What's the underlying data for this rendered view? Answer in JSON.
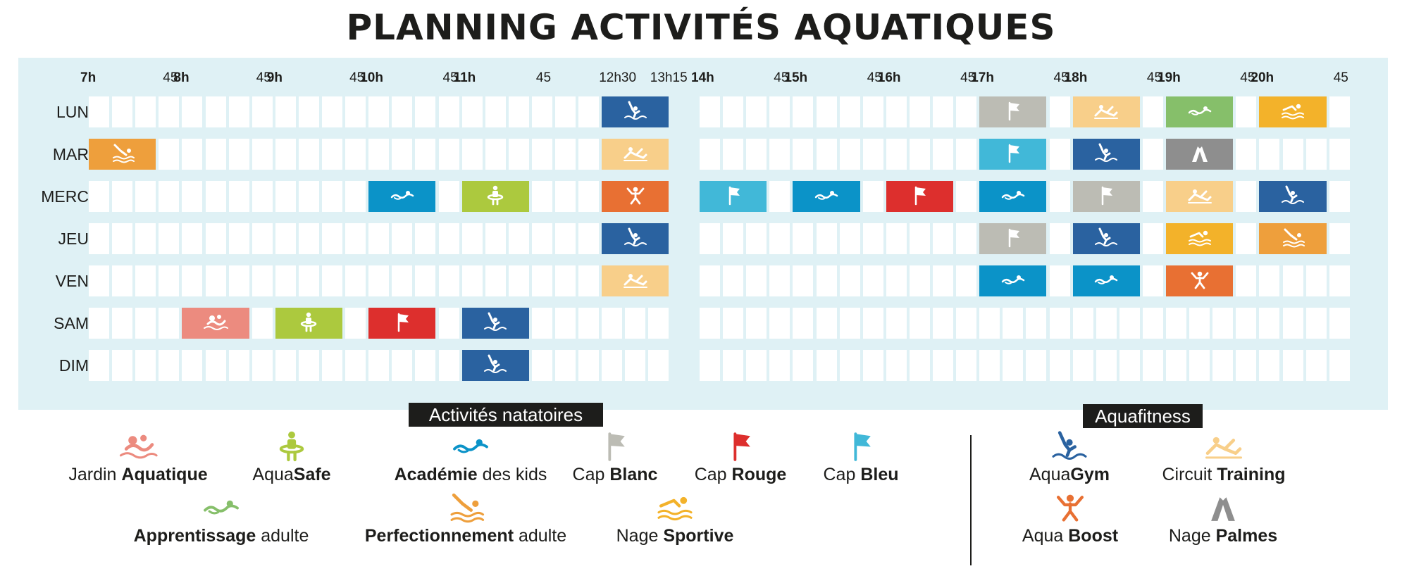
{
  "title": "PLANNING ACTIVITÉS AQUATIQUES",
  "time_axis": {
    "hours": [
      {
        "label": "7h",
        "slot": 0
      },
      {
        "label": "8h",
        "slot": 4
      },
      {
        "label": "9h",
        "slot": 8
      },
      {
        "label": "10h",
        "slot": 12
      },
      {
        "label": "11h",
        "slot": 16
      },
      {
        "label": "14h",
        "slot": 27
      },
      {
        "label": "15h",
        "slot": 31
      },
      {
        "label": "16h",
        "slot": 35
      },
      {
        "label": "17h",
        "slot": 39
      },
      {
        "label": "18h",
        "slot": 43
      },
      {
        "label": "19h",
        "slot": 47
      },
      {
        "label": "20h",
        "slot": 51
      }
    ],
    "minutes": [
      {
        "label": "45",
        "slot": 3
      },
      {
        "label": "45",
        "slot": 7
      },
      {
        "label": "45",
        "slot": 11
      },
      {
        "label": "45",
        "slot": 15
      },
      {
        "label": "45",
        "slot": 19
      },
      {
        "label": "12h30",
        "slot": 22
      },
      {
        "label": "13h15",
        "slot": 25
      },
      {
        "label": "45",
        "slot": 30
      },
      {
        "label": "45",
        "slot": 34
      },
      {
        "label": "45",
        "slot": 38
      },
      {
        "label": "45",
        "slot": 42
      },
      {
        "label": "45",
        "slot": 46
      },
      {
        "label": "45",
        "slot": 50
      },
      {
        "label": "45",
        "slot": 54
      }
    ]
  },
  "days": [
    "LUN",
    "MAR",
    "MERC",
    "JEU",
    "VEN",
    "SAM",
    "DIM"
  ],
  "activities": {
    "jardin": {
      "label_pre": "Jardin ",
      "label_bold": "Aquatique",
      "label_post": "",
      "color": "#ec8b7f",
      "icon": "baby-swim-icon"
    },
    "aquasafe": {
      "label_pre": "Aqua",
      "label_bold": "Safe",
      "label_post": "",
      "color": "#acc93e",
      "icon": "child-float-icon"
    },
    "academie": {
      "label_pre": "",
      "label_bold": "Académie",
      "label_post": " des kids",
      "color": "#0b93c8",
      "icon": "swimmer-icon"
    },
    "cap_blanc": {
      "label_pre": "Cap ",
      "label_bold": "Blanc",
      "label_post": "",
      "color": "#bcbcb4",
      "icon": "flag-icon"
    },
    "cap_rouge": {
      "label_pre": "Cap ",
      "label_bold": "Rouge",
      "label_post": "",
      "color": "#dd2f2d",
      "icon": "flag-icon"
    },
    "cap_bleu": {
      "label_pre": "Cap ",
      "label_bold": "Bleu",
      "label_post": "",
      "color": "#41b8d8",
      "icon": "flag-icon"
    },
    "apprentissage": {
      "label_pre": "",
      "label_bold": "Apprentissage",
      "label_post": " adulte",
      "color": "#86bf6a",
      "icon": "swimmer-icon"
    },
    "perfection": {
      "label_pre": "",
      "label_bold": "Perfectionnement",
      "label_post": " adulte",
      "color": "#ee9f3c",
      "icon": "diver-icon"
    },
    "nage_sportive": {
      "label_pre": "Nage ",
      "label_bold": "Sportive",
      "label_post": "",
      "color": "#f3b22a",
      "icon": "crawl-icon"
    },
    "aquagym": {
      "label_pre": "Aqua",
      "label_bold": "Gym",
      "label_post": "",
      "color": "#2a62a0",
      "icon": "aquagym-icon"
    },
    "circuit": {
      "label_pre": "Circuit ",
      "label_bold": "Training",
      "label_post": "",
      "color": "#f8cf8a",
      "icon": "circuit-icon"
    },
    "aqua_boost": {
      "label_pre": "Aqua ",
      "label_bold": "Boost",
      "label_post": "",
      "color": "#e87033",
      "icon": "jump-icon"
    },
    "nage_palmes": {
      "label_pre": "Nage ",
      "label_bold": "Palmes",
      "label_post": "",
      "color": "#8e8e8e",
      "icon": "fins-icon"
    }
  },
  "schedule": [
    {
      "day": "LUN",
      "start": 22,
      "span": 3,
      "activity": "aquagym"
    },
    {
      "day": "LUN",
      "start": 39,
      "span": 3,
      "activity": "cap_blanc"
    },
    {
      "day": "LUN",
      "start": 43,
      "span": 3,
      "activity": "circuit"
    },
    {
      "day": "LUN",
      "start": 47,
      "span": 3,
      "activity": "apprentissage"
    },
    {
      "day": "LUN",
      "start": 51,
      "span": 3,
      "activity": "nage_sportive"
    },
    {
      "day": "MAR",
      "start": 0,
      "span": 3,
      "activity": "perfection"
    },
    {
      "day": "MAR",
      "start": 22,
      "span": 3,
      "activity": "circuit"
    },
    {
      "day": "MAR",
      "start": 39,
      "span": 3,
      "activity": "cap_bleu"
    },
    {
      "day": "MAR",
      "start": 43,
      "span": 3,
      "activity": "aquagym"
    },
    {
      "day": "MAR",
      "start": 47,
      "span": 3,
      "activity": "nage_palmes"
    },
    {
      "day": "MERC",
      "start": 12,
      "span": 3,
      "activity": "academie"
    },
    {
      "day": "MERC",
      "start": 16,
      "span": 3,
      "activity": "aquasafe"
    },
    {
      "day": "MERC",
      "start": 22,
      "span": 3,
      "activity": "aqua_boost"
    },
    {
      "day": "MERC",
      "start": 27,
      "span": 3,
      "activity": "cap_bleu"
    },
    {
      "day": "MERC",
      "start": 31,
      "span": 3,
      "activity": "academie"
    },
    {
      "day": "MERC",
      "start": 35,
      "span": 3,
      "activity": "cap_rouge"
    },
    {
      "day": "MERC",
      "start": 39,
      "span": 3,
      "activity": "academie"
    },
    {
      "day": "MERC",
      "start": 43,
      "span": 3,
      "activity": "cap_blanc"
    },
    {
      "day": "MERC",
      "start": 47,
      "span": 3,
      "activity": "circuit"
    },
    {
      "day": "MERC",
      "start": 51,
      "span": 3,
      "activity": "aquagym"
    },
    {
      "day": "JEU",
      "start": 22,
      "span": 3,
      "activity": "aquagym"
    },
    {
      "day": "JEU",
      "start": 39,
      "span": 3,
      "activity": "cap_blanc"
    },
    {
      "day": "JEU",
      "start": 43,
      "span": 3,
      "activity": "aquagym"
    },
    {
      "day": "JEU",
      "start": 47,
      "span": 3,
      "activity": "nage_sportive"
    },
    {
      "day": "JEU",
      "start": 51,
      "span": 3,
      "activity": "perfection"
    },
    {
      "day": "VEN",
      "start": 22,
      "span": 3,
      "activity": "circuit"
    },
    {
      "day": "VEN",
      "start": 39,
      "span": 3,
      "activity": "academie"
    },
    {
      "day": "VEN",
      "start": 43,
      "span": 3,
      "activity": "academie"
    },
    {
      "day": "VEN",
      "start": 47,
      "span": 3,
      "activity": "aqua_boost"
    },
    {
      "day": "SAM",
      "start": 4,
      "span": 3,
      "activity": "jardin"
    },
    {
      "day": "SAM",
      "start": 8,
      "span": 3,
      "activity": "aquasafe"
    },
    {
      "day": "SAM",
      "start": 12,
      "span": 3,
      "activity": "cap_rouge"
    },
    {
      "day": "SAM",
      "start": 16,
      "span": 3,
      "activity": "aquagym"
    },
    {
      "day": "DIM",
      "start": 16,
      "span": 3,
      "activity": "aquagym"
    }
  ],
  "legend": {
    "natatoires_title": "Activités natatoires",
    "aquafitness_title": "Aquafitness",
    "natatoires_row1": [
      "jardin",
      "aquasafe",
      "academie",
      "cap_blanc",
      "cap_rouge",
      "cap_bleu"
    ],
    "natatoires_row2": [
      "apprentissage",
      "perfection",
      "nage_sportive"
    ],
    "aquafitness_row1": [
      "aquagym",
      "circuit"
    ],
    "aquafitness_row2": [
      "aqua_boost",
      "nage_palmes"
    ]
  }
}
